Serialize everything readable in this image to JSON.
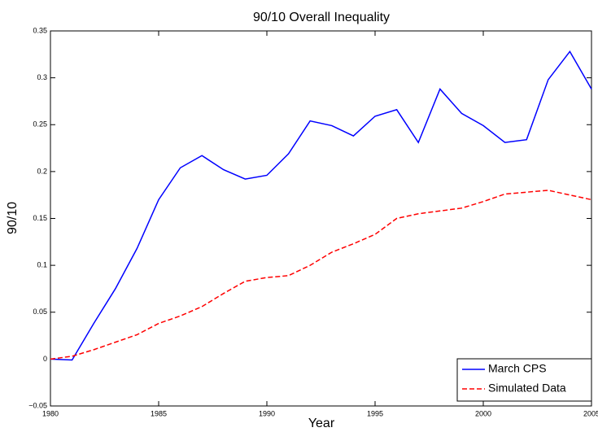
{
  "chart_data": {
    "type": "line",
    "title": "90/10 Overall Inequality",
    "xlabel": "Year",
    "ylabel": "90/10",
    "x": [
      1980,
      1981,
      1982,
      1983,
      1984,
      1985,
      1986,
      1987,
      1988,
      1989,
      1990,
      1991,
      1992,
      1993,
      1994,
      1995,
      1996,
      1997,
      1998,
      1999,
      2000,
      2001,
      2002,
      2003,
      2004,
      2005
    ],
    "series": [
      {
        "name": "March CPS",
        "color": "#0000ff",
        "dash": "solid",
        "values": [
          0,
          -0.001,
          0.038,
          0.075,
          0.118,
          0.17,
          0.204,
          0.217,
          0.202,
          0.192,
          0.196,
          0.219,
          0.254,
          0.249,
          0.238,
          0.259,
          0.266,
          0.231,
          0.288,
          0.262,
          0.249,
          0.231,
          0.234,
          0.298,
          0.328,
          0.288
        ]
      },
      {
        "name": "Simulated Data",
        "color": "#ff0000",
        "dash": "dashed",
        "values": [
          0,
          0.003,
          0.01,
          0.018,
          0.026,
          0.038,
          0.046,
          0.056,
          0.07,
          0.083,
          0.087,
          0.089,
          0.1,
          0.114,
          0.123,
          0.133,
          0.15,
          0.155,
          0.158,
          0.161,
          0.168,
          0.176,
          0.178,
          0.18,
          0.175,
          0.17
        ]
      }
    ],
    "xlim": [
      1980,
      2005
    ],
    "xticks": [
      1980,
      1985,
      1990,
      1995,
      2000,
      2005
    ],
    "ylim": [
      -0.05,
      0.35
    ],
    "yticks": [
      {
        "value": -0.05,
        "label": "−0.05"
      },
      0,
      0.05,
      0.1,
      0.15,
      0.2,
      0.25,
      0.3,
      0.35
    ],
    "grid": false,
    "legend": "lower-right"
  }
}
